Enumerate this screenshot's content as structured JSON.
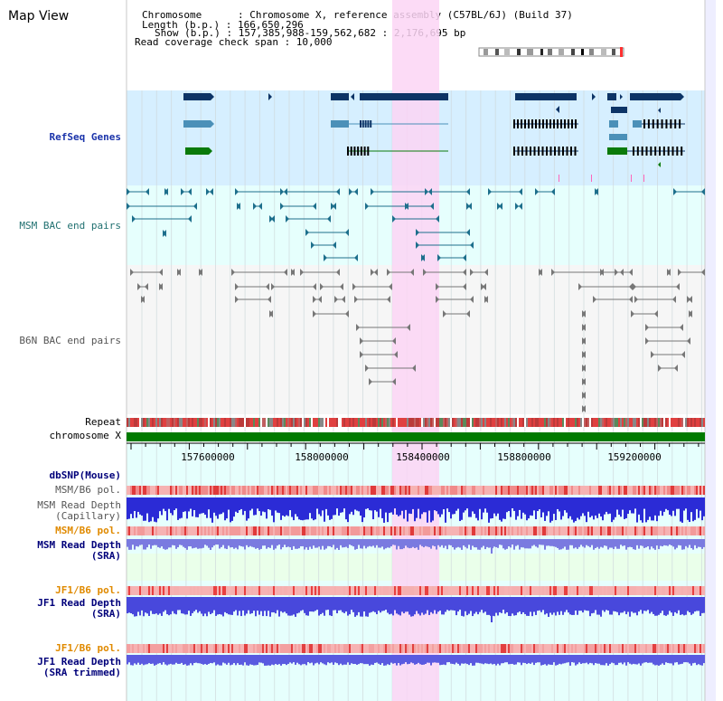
{
  "view_title": "Map View",
  "info": {
    "chromosome": "Chromosome      : Chromosome X, reference assembly (C57BL/6J) (Build 37)",
    "length": "Length (b.p.) : 166,650,296",
    "show": "Show (b.p.) : 157,385,988-159,562,682 : 2,176,695 bp",
    "coverage": "Read coverage check span : 10,000"
  },
  "axis": {
    "ticks": [
      "157600000",
      "158000000",
      "158400000",
      "158800000",
      "159200000"
    ]
  },
  "tracks": {
    "refseq": "RefSeq Genes",
    "msm_bac": "MSM BAC end pairs",
    "b6n_bac": "B6N BAC end pairs",
    "repeat": "Repeat",
    "chromosome": "chromosome X",
    "dbsnp": "dbSNP(Mouse)",
    "msm_b6_pol_1": "MSM/B6 pol.",
    "msm_depth_cap_1": "MSM Read Depth",
    "msm_depth_cap_2": "(Capillary)",
    "msm_b6_pol_2": "MSM/B6 pol.",
    "msm_depth_sra_1": "MSM Read Depth",
    "msm_depth_sra_2": "(SRA)",
    "jf1_b6_pol_1": "JF1/B6 pol.",
    "jf1_depth_1": "JF1 Read Depth",
    "jf1_depth_2": "(SRA)",
    "jf1_b6_pol_2": "JF1/B6 pol.",
    "jf1_trim_1": "JF1 Read Depth",
    "jf1_trim_2": "(SRA trimmed)"
  },
  "colors": {
    "refseq_bg": "#d6efff",
    "pale_cyan": "#e6fffd",
    "highlight": "#fbd5f5",
    "gene_dark": "#0d3466",
    "gene_mid": "#4b90b8",
    "gene_green": "#0a7a0a",
    "bac_teal": "#1d6f8c",
    "bac_gray": "#777777",
    "chrom_green": "#007a00",
    "depth_blue": "#2b2bd6",
    "depth_light": "#7a7ae0",
    "snp_red": "#e85050"
  }
}
